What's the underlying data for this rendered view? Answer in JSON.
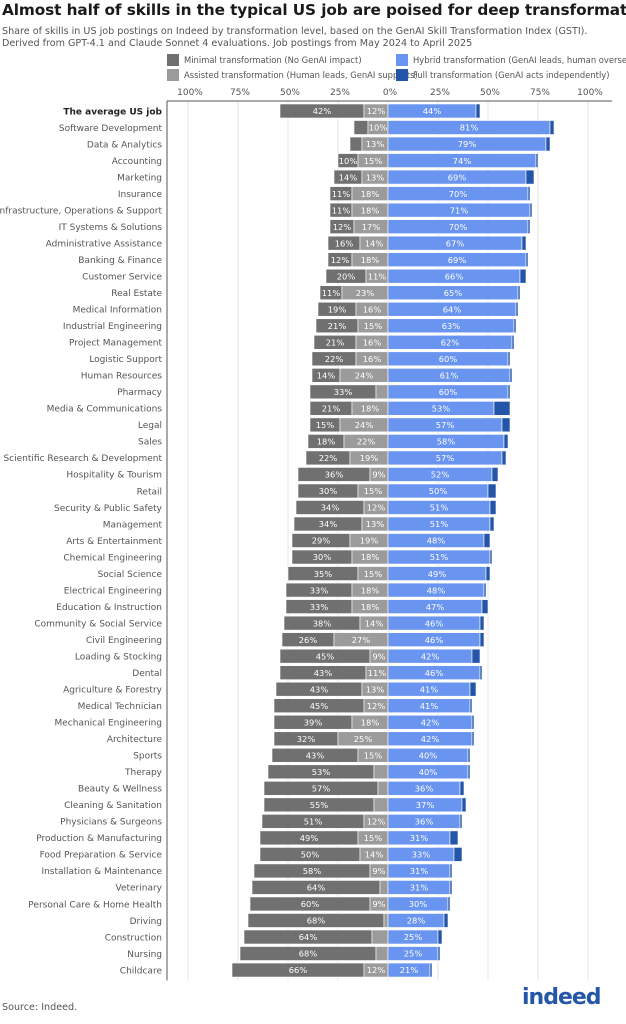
{
  "title": "Almost half of skills in the typical US job are poised for deep transformation",
  "subtitle_lines": [
    "Share of skills in US job postings on Indeed by transformation level, based on the GenAI Skill Transformation Index (GSTI).",
    "Derived from GPT-4.1 and Claude Sonnet 4 evaluations. Job postings from May 2024 to April 2025"
  ],
  "source": "Source: Indeed.",
  "logo_text": "indeed",
  "chart_data": {
    "type": "bar",
    "orientation": "horizontal diverging stacked",
    "legend_position": "top",
    "grid": true,
    "xlim": [
      -100,
      100
    ],
    "x_ticks": [
      "100%",
      "75%",
      "50%",
      "25%",
      "0%",
      "25%",
      "50%",
      "75%",
      "100%"
    ],
    "series": [
      {
        "name": "Minimal transformation (No GenAI impact)",
        "color": "#707070",
        "side": "left"
      },
      {
        "name": "Assisted transformation (Human leads, GenAI supports)",
        "color": "#9b9b9b",
        "side": "left"
      },
      {
        "name": "Hybrid transformation (GenAI leads, human oversees)",
        "color": "#6994ef",
        "side": "right"
      },
      {
        "name": "Full transformation (GenAI acts independently)",
        "color": "#2356a8",
        "side": "right"
      }
    ],
    "categories": [
      {
        "label": "The average US job",
        "values": [
          42,
          12,
          44,
          2
        ],
        "bold": true
      },
      {
        "label": "Software Development",
        "values": [
          7,
          10,
          81,
          2
        ]
      },
      {
        "label": "Data & Analytics",
        "values": [
          6,
          13,
          79,
          2
        ]
      },
      {
        "label": "Accounting",
        "values": [
          10,
          15,
          74,
          1
        ]
      },
      {
        "label": "Marketing",
        "values": [
          14,
          13,
          69,
          4
        ]
      },
      {
        "label": "Insurance",
        "values": [
          11,
          18,
          70,
          1
        ]
      },
      {
        "label": "IT Infrastructure, Operations & Support",
        "values": [
          11,
          18,
          71,
          1
        ]
      },
      {
        "label": "IT Systems & Solutions",
        "values": [
          12,
          17,
          70,
          1
        ]
      },
      {
        "label": "Administrative Assistance",
        "values": [
          16,
          14,
          67,
          2
        ]
      },
      {
        "label": "Banking & Finance",
        "values": [
          12,
          18,
          69,
          1
        ]
      },
      {
        "label": "Customer Service",
        "values": [
          20,
          11,
          66,
          3
        ]
      },
      {
        "label": "Real Estate",
        "values": [
          11,
          23,
          65,
          1
        ]
      },
      {
        "label": "Medical Information",
        "values": [
          19,
          16,
          64,
          1
        ]
      },
      {
        "label": "Industrial Engineering",
        "values": [
          21,
          15,
          63,
          1
        ]
      },
      {
        "label": "Project Management",
        "values": [
          21,
          16,
          62,
          1
        ]
      },
      {
        "label": "Logistic Support",
        "values": [
          22,
          16,
          60,
          1
        ]
      },
      {
        "label": "Human Resources",
        "values": [
          14,
          24,
          61,
          1
        ]
      },
      {
        "label": "Pharmacy",
        "values": [
          33,
          6,
          60,
          1
        ]
      },
      {
        "label": "Media & Communications",
        "values": [
          21,
          18,
          53,
          8
        ]
      },
      {
        "label": "Legal",
        "values": [
          15,
          24,
          57,
          4
        ]
      },
      {
        "label": "Sales",
        "values": [
          18,
          22,
          58,
          2
        ]
      },
      {
        "label": "Scientific Research & Development",
        "values": [
          22,
          19,
          57,
          2
        ]
      },
      {
        "label": "Hospitality & Tourism",
        "values": [
          36,
          9,
          52,
          3
        ]
      },
      {
        "label": "Retail",
        "values": [
          30,
          15,
          50,
          4
        ]
      },
      {
        "label": "Security & Public Safety",
        "values": [
          34,
          12,
          51,
          3
        ]
      },
      {
        "label": "Management",
        "values": [
          34,
          13,
          51,
          2
        ]
      },
      {
        "label": "Arts & Entertainment",
        "values": [
          29,
          19,
          48,
          3
        ]
      },
      {
        "label": "Chemical Engineering",
        "values": [
          30,
          18,
          51,
          1
        ]
      },
      {
        "label": "Social Science",
        "values": [
          35,
          15,
          49,
          2
        ]
      },
      {
        "label": "Electrical Engineering",
        "values": [
          33,
          18,
          48,
          1
        ]
      },
      {
        "label": "Education & Instruction",
        "values": [
          33,
          18,
          47,
          3
        ]
      },
      {
        "label": "Community & Social Service",
        "values": [
          38,
          14,
          46,
          2
        ]
      },
      {
        "label": "Civil Engineering",
        "values": [
          26,
          27,
          46,
          2
        ]
      },
      {
        "label": "Loading & Stocking",
        "values": [
          45,
          9,
          42,
          4
        ]
      },
      {
        "label": "Dental",
        "values": [
          43,
          11,
          46,
          1
        ]
      },
      {
        "label": "Agriculture & Forestry",
        "values": [
          43,
          13,
          41,
          3
        ]
      },
      {
        "label": "Medical Technician",
        "values": [
          45,
          12,
          41,
          1
        ]
      },
      {
        "label": "Mechanical Engineering",
        "values": [
          39,
          18,
          42,
          1
        ]
      },
      {
        "label": "Architecture",
        "values": [
          32,
          25,
          42,
          1
        ]
      },
      {
        "label": "Sports",
        "values": [
          43,
          15,
          40,
          1
        ]
      },
      {
        "label": "Therapy",
        "values": [
          53,
          7,
          40,
          1
        ]
      },
      {
        "label": "Beauty & Wellness",
        "values": [
          57,
          5,
          36,
          2
        ]
      },
      {
        "label": "Cleaning & Sanitation",
        "values": [
          55,
          7,
          37,
          2
        ]
      },
      {
        "label": "Physicians & Surgeons",
        "values": [
          51,
          12,
          36,
          1
        ]
      },
      {
        "label": "Production & Manufacturing",
        "values": [
          49,
          15,
          31,
          4
        ]
      },
      {
        "label": "Food Preparation & Service",
        "values": [
          50,
          14,
          33,
          4
        ]
      },
      {
        "label": "Installation & Maintenance",
        "values": [
          58,
          9,
          31,
          1
        ]
      },
      {
        "label": "Veterinary",
        "values": [
          64,
          4,
          31,
          1
        ]
      },
      {
        "label": "Personal Care & Home Health",
        "values": [
          60,
          9,
          30,
          1
        ]
      },
      {
        "label": "Driving",
        "values": [
          68,
          2,
          28,
          2
        ]
      },
      {
        "label": "Construction",
        "values": [
          64,
          8,
          25,
          2
        ]
      },
      {
        "label": "Nursing",
        "values": [
          68,
          6,
          25,
          1
        ]
      },
      {
        "label": "Childcare",
        "values": [
          66,
          12,
          21,
          1
        ]
      }
    ]
  }
}
